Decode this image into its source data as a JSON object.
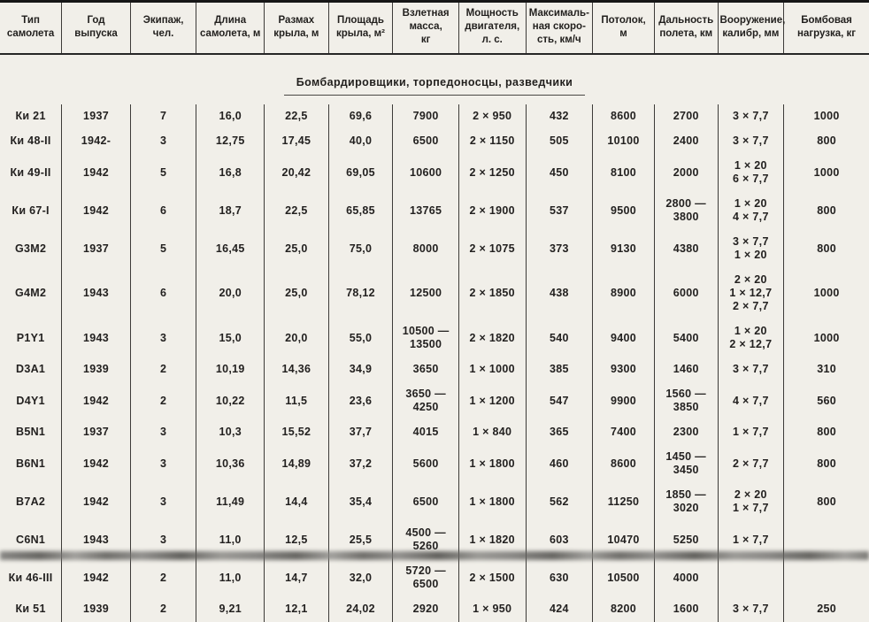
{
  "page": {
    "background_color": "#f1efe9",
    "ink_color": "#232120",
    "rule_color": "#3d3b38"
  },
  "section": {
    "title": "Бомбардировщики, торпедоносцы, разведчики"
  },
  "table": {
    "headers": [
      "Тип\nсамолета",
      "Год\nвыпуска",
      "Экипаж,\nчел.",
      "Длина\nсамолета, м",
      "Размах\nкрыла, м",
      "Площадь\nкрыла, м²",
      "Взлетная\nмасса,\nкг",
      "Мощность\nдвигателя,\nл. с.",
      "Максималь-\nная скоро-\nсть, км/ч",
      "Потолок,\nм",
      "Дальность\nполета, км",
      "Вооружение,\nкалибр, мм",
      "Бомбовая\nнагрузка, кг"
    ],
    "rows": [
      [
        "Ки 21",
        "1937",
        "7",
        "16,0",
        "22,5",
        "69,6",
        "7900",
        "2 × 950",
        "432",
        "8600",
        "2700",
        "3 × 7,7",
        "1000"
      ],
      [
        "Ки 48-II",
        "1942-",
        "3",
        "12,75",
        "17,45",
        "40,0",
        "6500",
        "2 × 1150",
        "505",
        "10100",
        "2400",
        "3 × 7,7",
        "800"
      ],
      [
        "Ки 49-II",
        "1942",
        "5",
        "16,8",
        "20,42",
        "69,05",
        "10600",
        "2 × 1250",
        "450",
        "8100",
        "2000",
        "1 × 20\n6 × 7,7",
        "1000"
      ],
      [
        "Ки 67-I",
        "1942",
        "6",
        "18,7",
        "22,5",
        "65,85",
        "13765",
        "2 × 1900",
        "537",
        "9500",
        "2800 — 3800",
        "1 × 20\n4 × 7,7",
        "800"
      ],
      [
        "G3M2",
        "1937",
        "5",
        "16,45",
        "25,0",
        "75,0",
        "8000",
        "2 × 1075",
        "373",
        "9130",
        "4380",
        "3 × 7,7\n1 × 20",
        "800"
      ],
      [
        "G4M2",
        "1943",
        "6",
        "20,0",
        "25,0",
        "78,12",
        "12500",
        "2 × 1850",
        "438",
        "8900",
        "6000",
        "2 × 20\n1 × 12,7\n2 × 7,7",
        "1000"
      ],
      [
        "P1Y1",
        "1943",
        "3",
        "15,0",
        "20,0",
        "55,0",
        "10500 —\n13500",
        "2 × 1820",
        "540",
        "9400",
        "5400",
        "1 × 20\n2 × 12,7",
        "1000"
      ],
      [
        "D3A1",
        "1939",
        "2",
        "10,19",
        "14,36",
        "34,9",
        "3650",
        "1 × 1000",
        "385",
        "9300",
        "1460",
        "3 × 7,7",
        "310"
      ],
      [
        "D4Y1",
        "1942",
        "2",
        "10,22",
        "11,5",
        "23,6",
        "3650 — 4250",
        "1 × 1200",
        "547",
        "9900",
        "1560 — 3850",
        "4 × 7,7",
        "560"
      ],
      [
        "B5N1",
        "1937",
        "3",
        "10,3",
        "15,52",
        "37,7",
        "4015",
        "1 × 840",
        "365",
        "7400",
        "2300",
        "1 × 7,7",
        "800"
      ],
      [
        "B6N1",
        "1942",
        "3",
        "10,36",
        "14,89",
        "37,2",
        "5600",
        "1 × 1800",
        "460",
        "8600",
        "1450 — 3450",
        "2 × 7,7",
        "800"
      ],
      [
        "B7A2",
        "1942",
        "3",
        "11,49",
        "14,4",
        "35,4",
        "6500",
        "1 × 1800",
        "562",
        "11250",
        "1850 — 3020",
        "2 × 20\n1 × 7,7",
        "800"
      ],
      [
        "C6N1",
        "1943",
        "3",
        "11,0",
        "12,5",
        "25,5",
        "4500 — 5260",
        "1 × 1820",
        "603",
        "10470",
        "5250",
        "1 × 7,7",
        ""
      ],
      [
        "Ки 46-III",
        "1942",
        "2",
        "11,0",
        "14,7",
        "32,0",
        "5720 — 6500",
        "2 × 1500",
        "630",
        "10500",
        "4000",
        "",
        ""
      ],
      [
        "Ки 51",
        "1939",
        "2",
        "9,21",
        "12,1",
        "24,02",
        "2920",
        "1 × 950",
        "424",
        "8200",
        "1600",
        "3 × 7,7",
        "250"
      ]
    ]
  }
}
